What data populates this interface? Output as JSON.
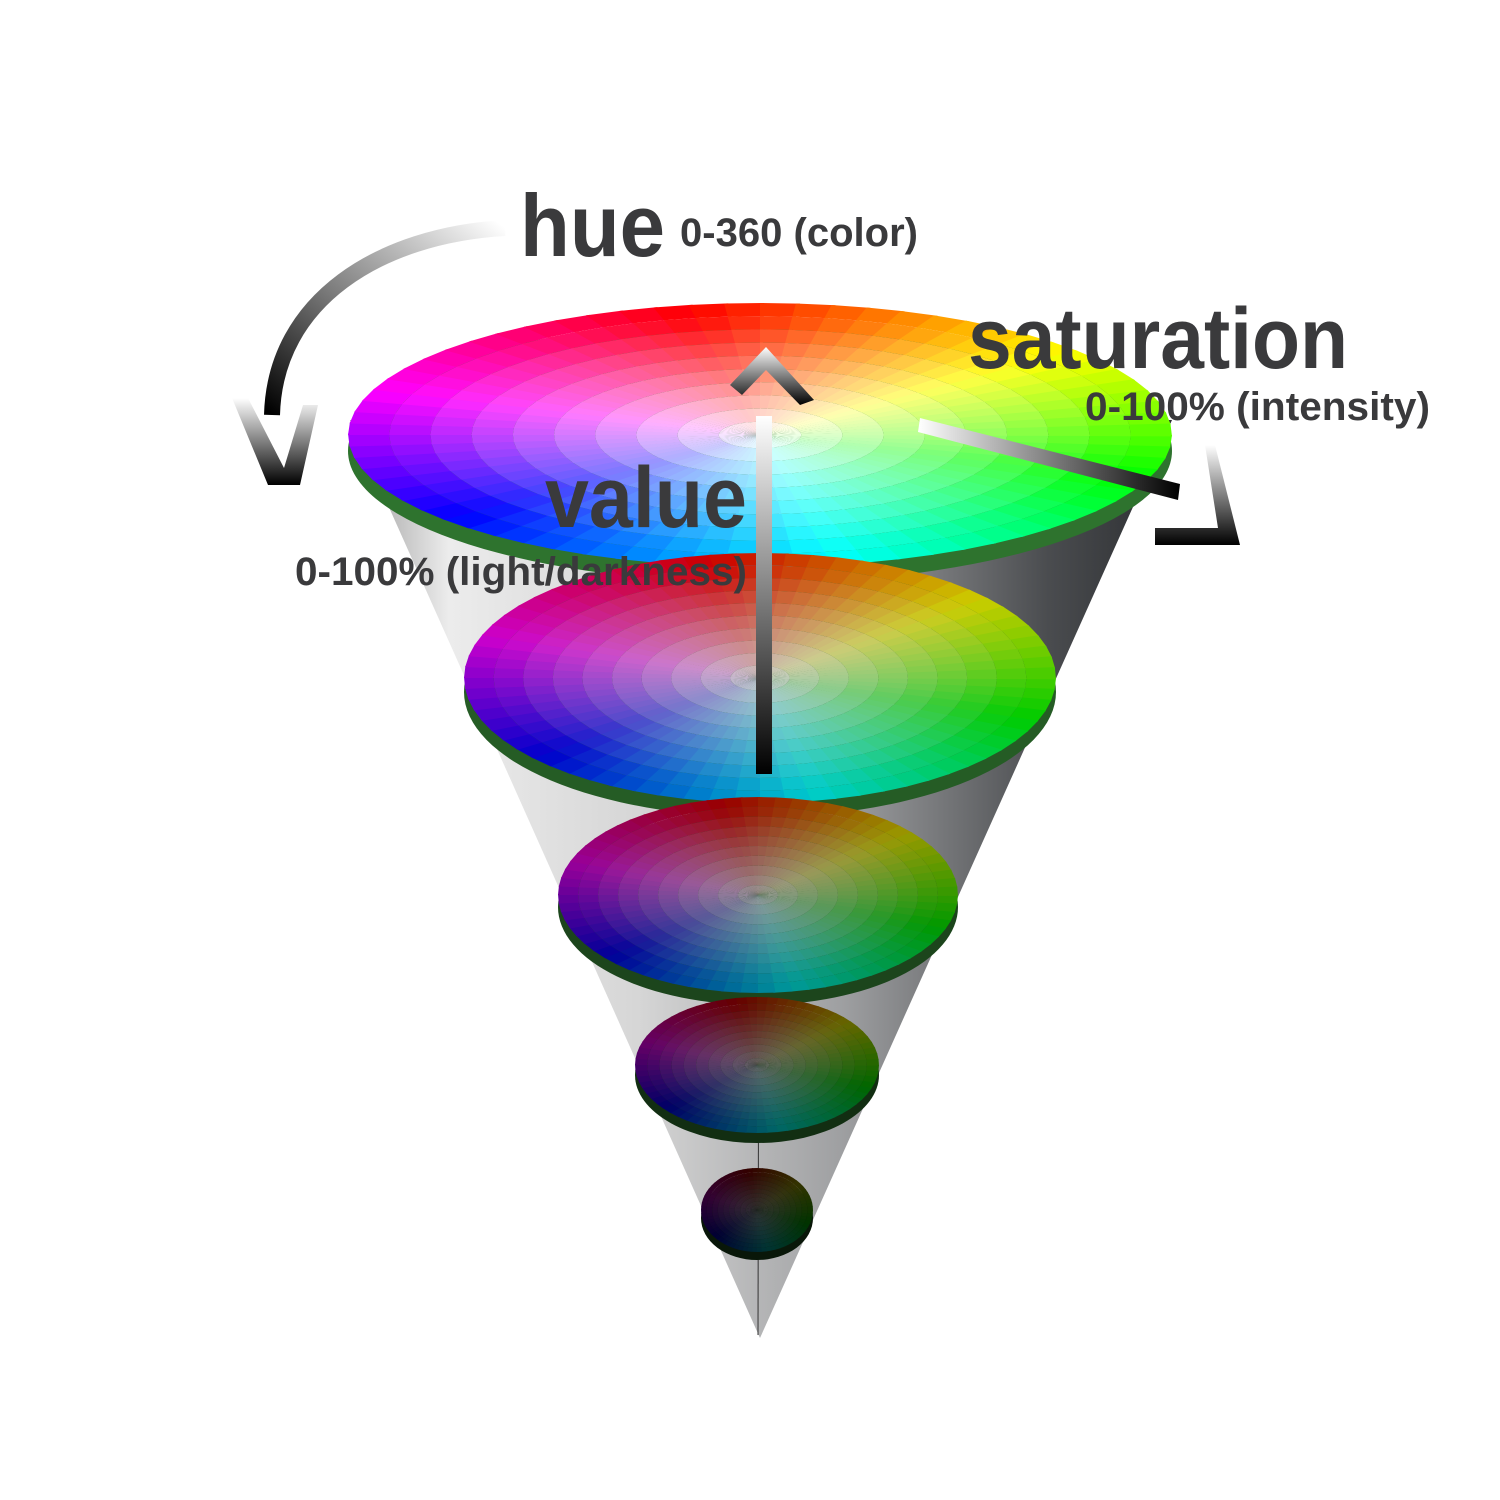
{
  "labels": {
    "hue": {
      "title": "hue",
      "range": "0-360 (color)"
    },
    "saturation": {
      "title": "saturation",
      "range": "0-100% (intensity)"
    },
    "value": {
      "title": "value",
      "range": "0-100% (light/darkness)"
    }
  },
  "discs": [
    {
      "value": 1.0
    },
    {
      "value": 0.8
    },
    {
      "value": 0.6
    },
    {
      "value": 0.4
    },
    {
      "value": 0.2
    }
  ],
  "colors": {
    "text": "#3a3a3c",
    "cone_light": "#e8e8e8",
    "cone_dark": "#2e3033"
  }
}
